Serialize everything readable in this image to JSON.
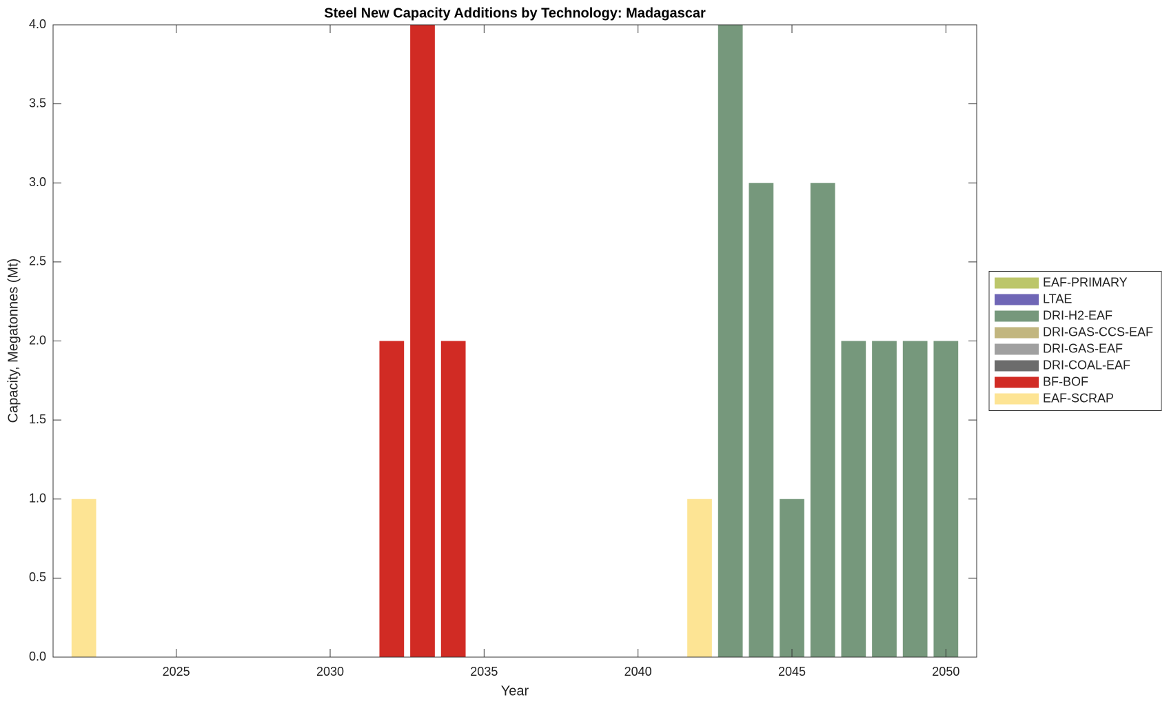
{
  "chart_data": {
    "type": "bar",
    "stacked": true,
    "title": "Steel New Capacity Additions by Technology: Madagascar",
    "xlabel": "Year",
    "ylabel": "Capacity, Megatonnes (Mt)",
    "x": [
      2022,
      2023,
      2024,
      2025,
      2026,
      2027,
      2028,
      2029,
      2030,
      2031,
      2032,
      2033,
      2034,
      2035,
      2036,
      2037,
      2038,
      2039,
      2040,
      2041,
      2042,
      2043,
      2044,
      2045,
      2046,
      2047,
      2048,
      2049,
      2050
    ],
    "xlim": [
      2021,
      2051
    ],
    "xticks": [
      2025,
      2030,
      2035,
      2040,
      2045,
      2050
    ],
    "ylim": [
      0,
      4
    ],
    "yticks": [
      {
        "value": 0,
        "label": "0.0"
      },
      0.5,
      {
        "value": 1,
        "label": "1.0"
      },
      1.5,
      {
        "value": 2,
        "label": "2.0"
      },
      2.5,
      {
        "value": 3,
        "label": "3.0"
      },
      3.5,
      {
        "value": 4,
        "label": "4.0"
      }
    ],
    "legend": "right",
    "series": [
      {
        "name": "EAF-PRIMARY",
        "color": "#bcc66a",
        "values": [
          0,
          0,
          0,
          0,
          0,
          0,
          0,
          0,
          0,
          0,
          0,
          0,
          0,
          0,
          0,
          0,
          0,
          0,
          0,
          0,
          0,
          0,
          0,
          0,
          0,
          0,
          0,
          0,
          0
        ]
      },
      {
        "name": "LTAE",
        "color": "#6f66b6",
        "values": [
          0,
          0,
          0,
          0,
          0,
          0,
          0,
          0,
          0,
          0,
          0,
          0,
          0,
          0,
          0,
          0,
          0,
          0,
          0,
          0,
          0,
          0,
          0,
          0,
          0,
          0,
          0,
          0,
          0
        ]
      },
      {
        "name": "DRI-H2-EAF",
        "color": "#76987c",
        "values": [
          0,
          0,
          0,
          0,
          0,
          0,
          0,
          0,
          0,
          0,
          0,
          0,
          0,
          0,
          0,
          0,
          0,
          0,
          0,
          0,
          0,
          4,
          3,
          1,
          3,
          2,
          2,
          2,
          2
        ]
      },
      {
        "name": "DRI-GAS-CCS-EAF",
        "color": "#c2b67f",
        "values": [
          0,
          0,
          0,
          0,
          0,
          0,
          0,
          0,
          0,
          0,
          0,
          0,
          0,
          0,
          0,
          0,
          0,
          0,
          0,
          0,
          0,
          0,
          0,
          0,
          0,
          0,
          0,
          0,
          0
        ]
      },
      {
        "name": "DRI-GAS-EAF",
        "color": "#a0a0a0",
        "values": [
          0,
          0,
          0,
          0,
          0,
          0,
          0,
          0,
          0,
          0,
          0,
          0,
          0,
          0,
          0,
          0,
          0,
          0,
          0,
          0,
          0,
          0,
          0,
          0,
          0,
          0,
          0,
          0,
          0
        ]
      },
      {
        "name": "DRI-COAL-EAF",
        "color": "#6c6c6c",
        "values": [
          0,
          0,
          0,
          0,
          0,
          0,
          0,
          0,
          0,
          0,
          0,
          0,
          0,
          0,
          0,
          0,
          0,
          0,
          0,
          0,
          0,
          0,
          0,
          0,
          0,
          0,
          0,
          0,
          0
        ]
      },
      {
        "name": "BF-BOF",
        "color": "#d12b24",
        "values": [
          0,
          0,
          0,
          0,
          0,
          0,
          0,
          0,
          0,
          0,
          2,
          4,
          2,
          0,
          0,
          0,
          0,
          0,
          0,
          0,
          0,
          0,
          0,
          0,
          0,
          0,
          0,
          0,
          0
        ]
      },
      {
        "name": "EAF-SCRAP",
        "color": "#fde494",
        "values": [
          1,
          0,
          0,
          0,
          0,
          0,
          0,
          0,
          0,
          0,
          0,
          0,
          0,
          0,
          0,
          0,
          0,
          0,
          0,
          0,
          1,
          0,
          0,
          0,
          0,
          0,
          0,
          0,
          0
        ]
      }
    ]
  }
}
